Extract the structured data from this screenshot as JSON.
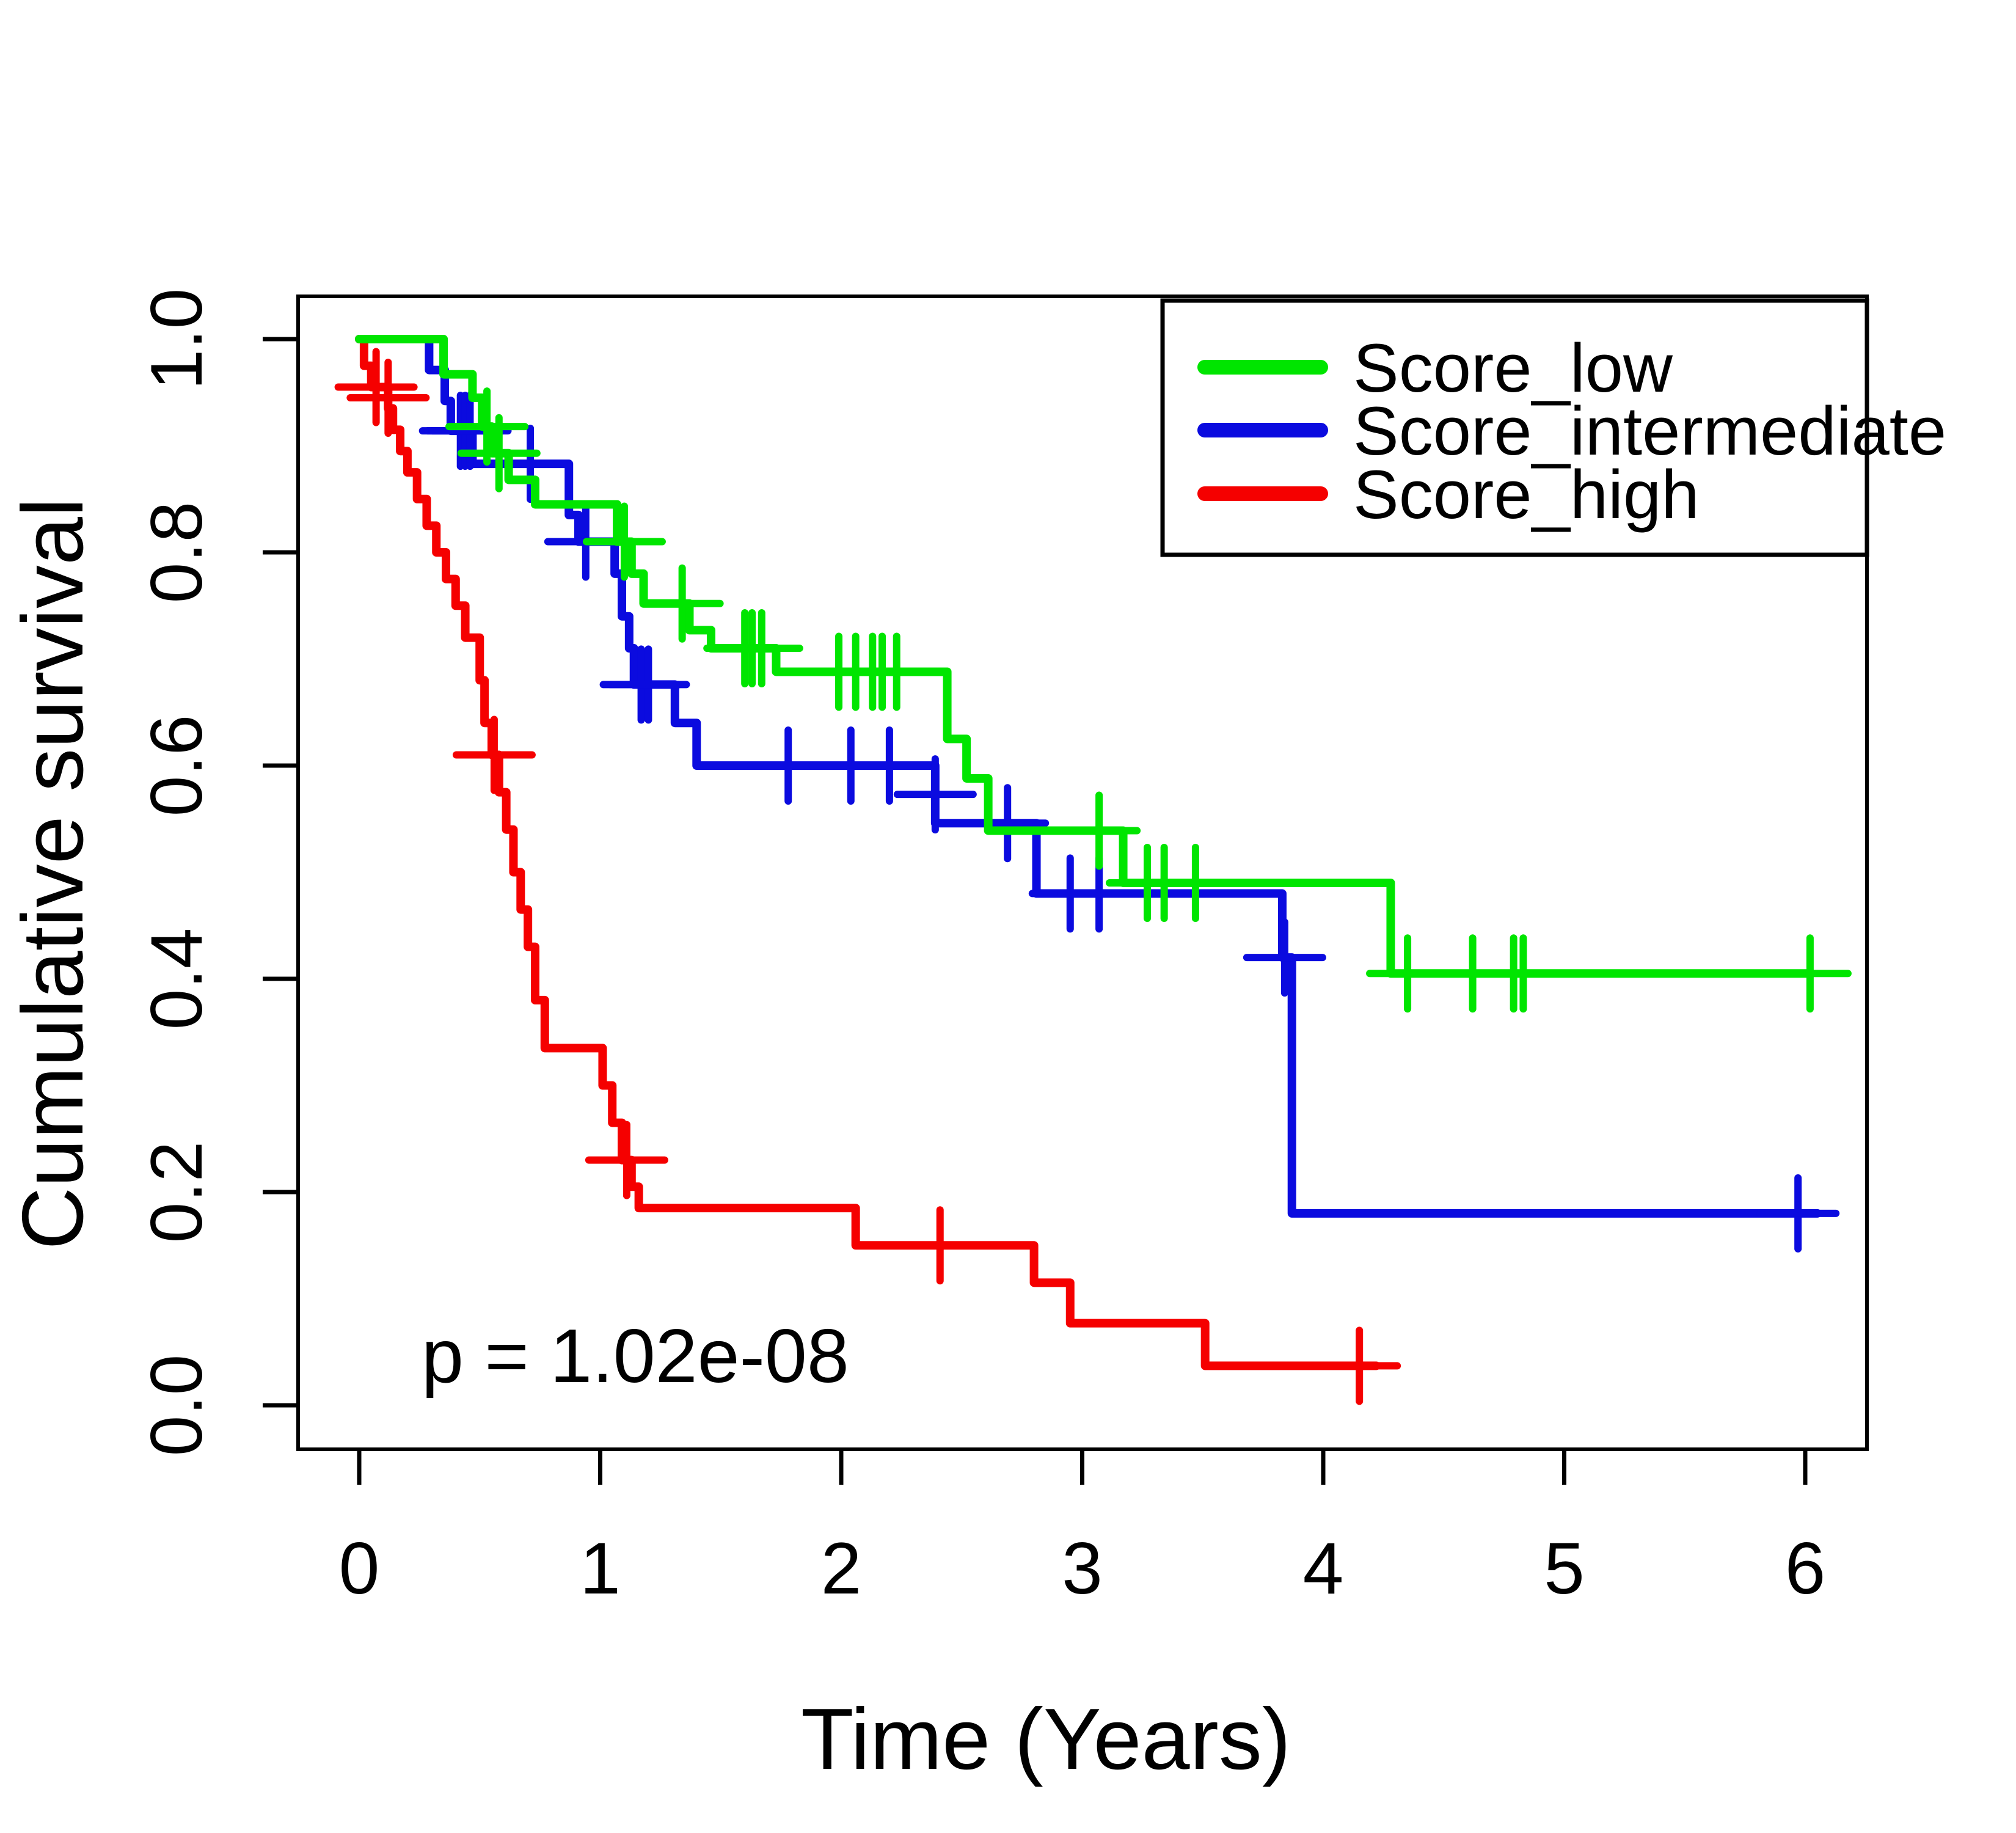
{
  "chart_data": {
    "type": "line",
    "subtype": "kaplan-meier-step",
    "title": "",
    "xlabel": "Time (Years)",
    "ylabel": "Cumulative survival",
    "annotation_pvalue": "p = 1.02e-08",
    "grid": false,
    "legend_position": "top-right",
    "xlim": [
      -0.24,
      6.29
    ],
    "ylim": [
      -0.04,
      1.04
    ],
    "x_ticks": [
      {
        "value": 0,
        "label": "0"
      },
      {
        "value": 1,
        "label": "1"
      },
      {
        "value": 2,
        "label": "2"
      },
      {
        "value": 3,
        "label": "3"
      },
      {
        "value": 4,
        "label": "4"
      },
      {
        "value": 5,
        "label": "5"
      },
      {
        "value": 6,
        "label": "6"
      }
    ],
    "y_ticks": [
      {
        "value": 0.0,
        "label": "0.0"
      },
      {
        "value": 0.2,
        "label": "0.2"
      },
      {
        "value": 0.4,
        "label": "0.4"
      },
      {
        "value": 0.6,
        "label": "0.6"
      },
      {
        "value": 0.8,
        "label": "0.8"
      },
      {
        "value": 1.0,
        "label": "1.0"
      }
    ],
    "series": [
      {
        "name": "Score_low",
        "color": "#00e500",
        "end_time": 6.02,
        "steps": [
          [
            0,
            1.0
          ],
          [
            0.35,
            0.967
          ],
          [
            0.47,
            0.945
          ],
          [
            0.51,
            0.918
          ],
          [
            0.55,
            0.893
          ],
          [
            0.62,
            0.868
          ],
          [
            0.73,
            0.845
          ],
          [
            1.07,
            0.81
          ],
          [
            1.13,
            0.78
          ],
          [
            1.18,
            0.752
          ],
          [
            1.37,
            0.727
          ],
          [
            1.46,
            0.71
          ],
          [
            1.73,
            0.688
          ],
          [
            2.44,
            0.625
          ],
          [
            2.52,
            0.588
          ],
          [
            2.61,
            0.539
          ],
          [
            3.17,
            0.49
          ],
          [
            4.28,
            0.405
          ]
        ],
        "censors": [
          [
            0.53,
            0.918
          ],
          [
            0.58,
            0.893
          ],
          [
            1.1,
            0.81
          ],
          [
            1.34,
            0.752
          ],
          [
            1.6,
            0.71
          ],
          [
            1.63,
            0.71
          ],
          [
            1.67,
            0.71
          ],
          [
            1.99,
            0.688
          ],
          [
            2.06,
            0.688
          ],
          [
            2.13,
            0.688
          ],
          [
            2.17,
            0.688
          ],
          [
            2.23,
            0.688
          ],
          [
            3.07,
            0.539
          ],
          [
            3.27,
            0.49
          ],
          [
            3.34,
            0.49
          ],
          [
            3.47,
            0.49
          ],
          [
            4.35,
            0.405
          ],
          [
            4.62,
            0.405
          ],
          [
            4.79,
            0.405
          ],
          [
            4.83,
            0.405
          ],
          [
            6.02,
            0.405
          ]
        ]
      },
      {
        "name": "Score_intermediate",
        "color": "#0b0bdf",
        "end_time": 6.05,
        "steps": [
          [
            0,
            1.0
          ],
          [
            0.29,
            0.971
          ],
          [
            0.355,
            0.942
          ],
          [
            0.38,
            0.914
          ],
          [
            0.47,
            0.883
          ],
          [
            0.87,
            0.835
          ],
          [
            0.91,
            0.81
          ],
          [
            1.06,
            0.78
          ],
          [
            1.09,
            0.74
          ],
          [
            1.12,
            0.71
          ],
          [
            1.14,
            0.676
          ],
          [
            1.31,
            0.64
          ],
          [
            1.4,
            0.6
          ],
          [
            2.39,
            0.546
          ],
          [
            2.81,
            0.48
          ],
          [
            3.83,
            0.42
          ],
          [
            3.87,
            0.18
          ]
        ],
        "censors": [
          [
            0.42,
            0.914
          ],
          [
            0.44,
            0.914
          ],
          [
            0.46,
            0.914
          ],
          [
            0.71,
            0.883
          ],
          [
            0.94,
            0.81
          ],
          [
            1.17,
            0.676
          ],
          [
            1.2,
            0.676
          ],
          [
            1.78,
            0.6
          ],
          [
            2.04,
            0.6
          ],
          [
            2.2,
            0.6
          ],
          [
            2.39,
            0.573
          ],
          [
            2.69,
            0.546
          ],
          [
            2.95,
            0.48
          ],
          [
            3.07,
            0.48
          ],
          [
            3.84,
            0.42
          ],
          [
            5.97,
            0.18
          ]
        ]
      },
      {
        "name": "Score_high",
        "color": "#f50000",
        "end_time": 4.22,
        "steps": [
          [
            0,
            1.0
          ],
          [
            0.02,
            0.975
          ],
          [
            0.05,
            0.955
          ],
          [
            0.12,
            0.935
          ],
          [
            0.14,
            0.915
          ],
          [
            0.17,
            0.895
          ],
          [
            0.2,
            0.875
          ],
          [
            0.24,
            0.85
          ],
          [
            0.28,
            0.825
          ],
          [
            0.32,
            0.8
          ],
          [
            0.36,
            0.775
          ],
          [
            0.4,
            0.75
          ],
          [
            0.44,
            0.72
          ],
          [
            0.5,
            0.68
          ],
          [
            0.52,
            0.64
          ],
          [
            0.55,
            0.61
          ],
          [
            0.58,
            0.575
          ],
          [
            0.61,
            0.54
          ],
          [
            0.64,
            0.5
          ],
          [
            0.67,
            0.465
          ],
          [
            0.7,
            0.43
          ],
          [
            0.73,
            0.38
          ],
          [
            0.77,
            0.335
          ],
          [
            1.01,
            0.3
          ],
          [
            1.05,
            0.265
          ],
          [
            1.09,
            0.23
          ],
          [
            1.13,
            0.205
          ],
          [
            1.16,
            0.185
          ],
          [
            2.06,
            0.15
          ],
          [
            2.8,
            0.115
          ],
          [
            2.95,
            0.077
          ],
          [
            3.51,
            0.037
          ]
        ],
        "censors": [
          [
            0.07,
            0.955
          ],
          [
            0.12,
            0.945
          ],
          [
            0.56,
            0.61
          ],
          [
            1.11,
            0.23
          ],
          [
            2.41,
            0.15
          ],
          [
            4.15,
            0.037
          ]
        ]
      }
    ]
  }
}
